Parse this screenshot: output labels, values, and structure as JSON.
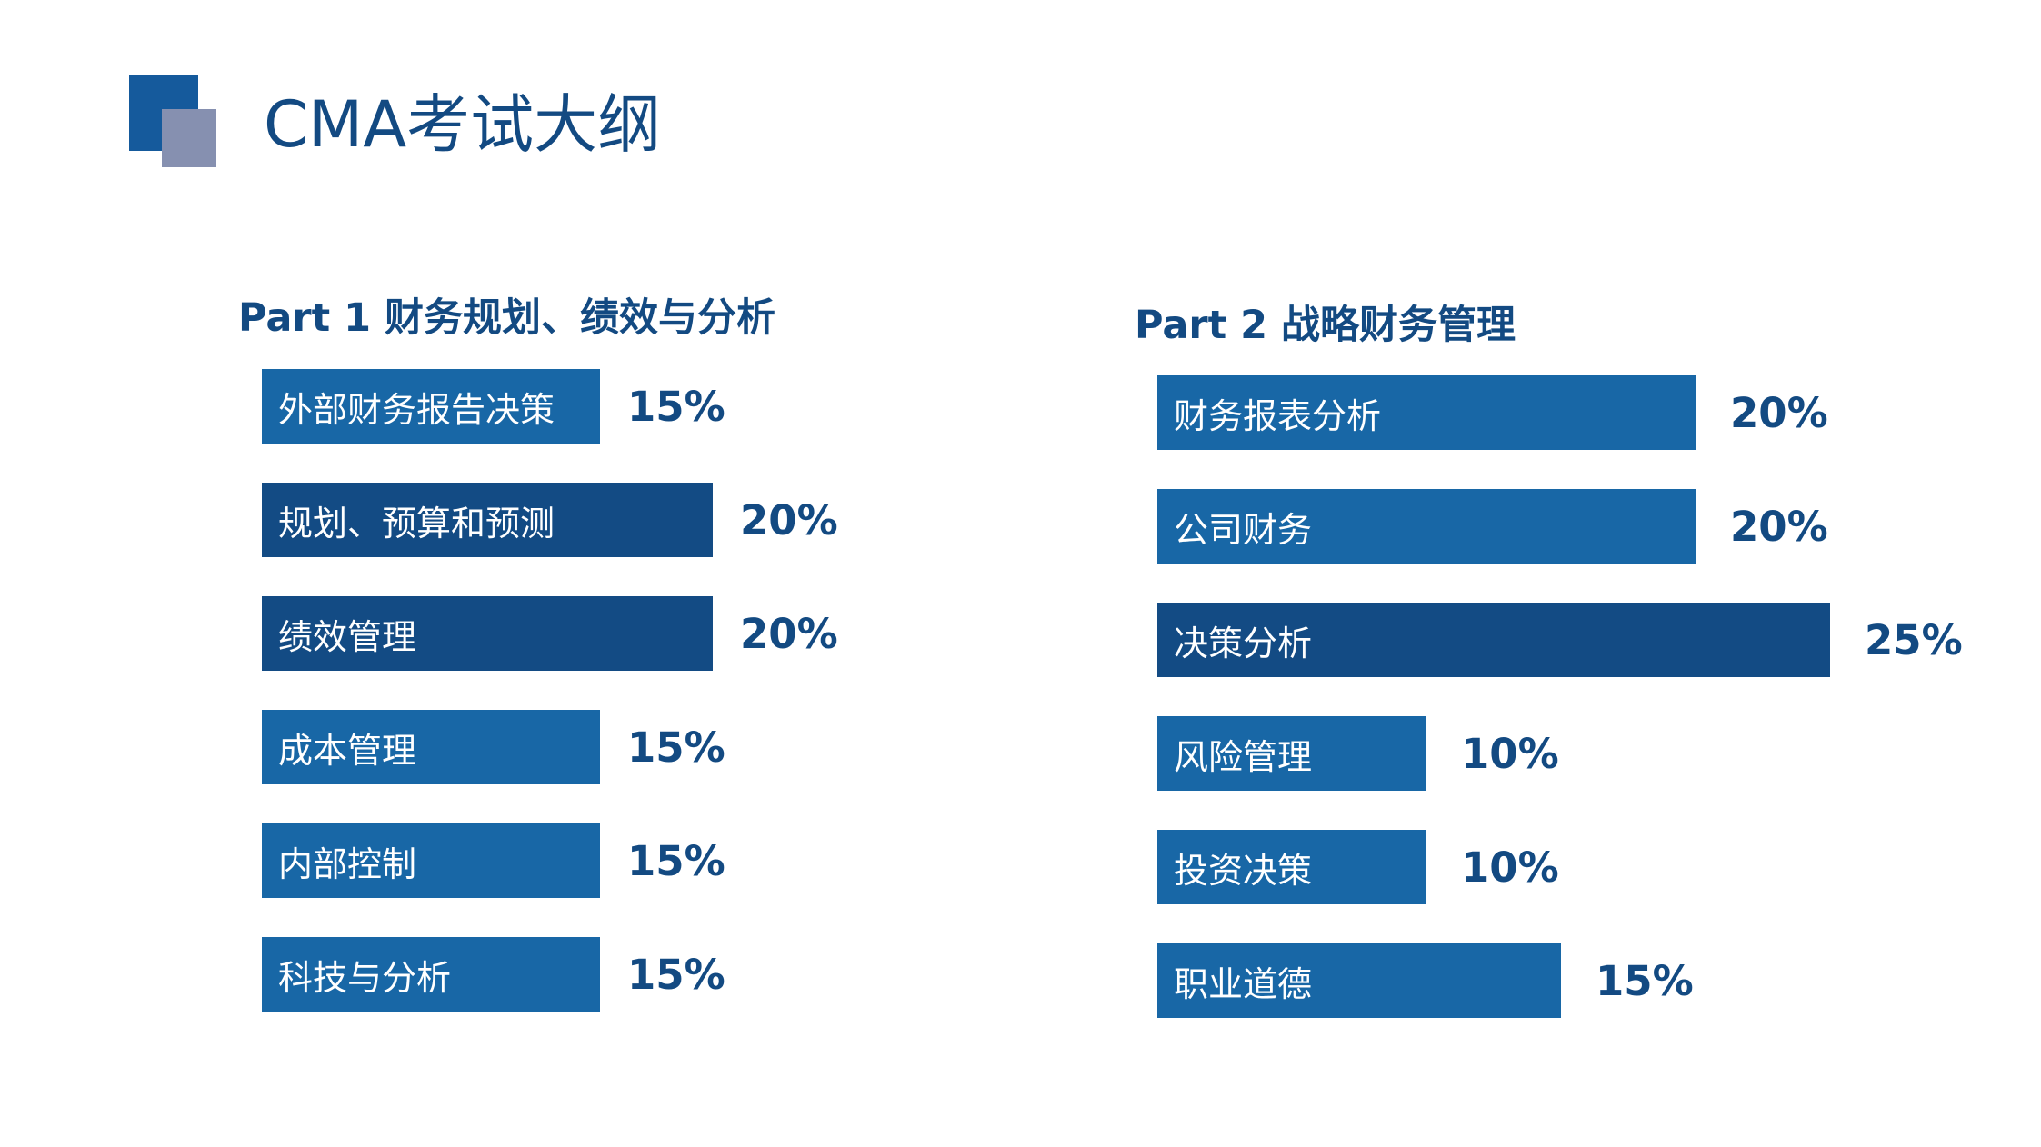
{
  "page": {
    "title": "CMA考试大纲"
  },
  "colors": {
    "title_text": "#134a82",
    "logo_dark": "#155a9c",
    "logo_light": "#8690b0",
    "bar_medium": "#1867a6",
    "bar_dark": "#134b84",
    "value_text": "#134a82"
  },
  "chart_data": [
    {
      "type": "bar",
      "orientation": "horizontal",
      "title": "Part 1 财务规划、绩效与分析",
      "categories": [
        "外部财务报告决策",
        "规划、预算和预测",
        "绩效管理",
        "成本管理",
        "内部控制",
        "科技与分析"
      ],
      "values": [
        15,
        20,
        20,
        15,
        15,
        15
      ],
      "labels": [
        "15%",
        "20%",
        "20%",
        "15%",
        "15%",
        "15%"
      ],
      "unit": "%"
    },
    {
      "type": "bar",
      "orientation": "horizontal",
      "title": "Part 2 战略财务管理",
      "categories": [
        "财务报表分析",
        "公司财务",
        "决策分析",
        "风险管理",
        "投资决策",
        "职业道德"
      ],
      "values": [
        20,
        20,
        25,
        10,
        10,
        15
      ],
      "labels": [
        "20%",
        "20%",
        "25%",
        "10%",
        "10%",
        "15%"
      ],
      "unit": "%"
    }
  ]
}
